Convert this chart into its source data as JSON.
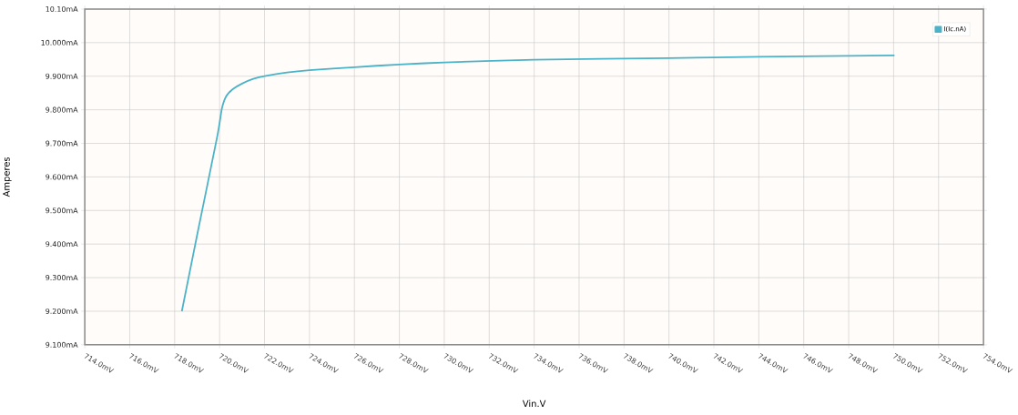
{
  "chart_data": {
    "type": "line",
    "xlabel": "Vin.V",
    "ylabel": "Amperes",
    "x": [
      718.32,
      719.0,
      719.9,
      720.1,
      720.3,
      720.6,
      721.0,
      721.5,
      722.0,
      723.0,
      724.0,
      726.0,
      728.0,
      730.0,
      734.0,
      740.0,
      744.0,
      750.04
    ],
    "series": [
      {
        "name": "I(Ic.nA)",
        "color": "#4bb3c8",
        "values": [
          9.2,
          9.427,
          9.722,
          9.803,
          9.841,
          9.862,
          9.878,
          9.892,
          9.9,
          9.911,
          9.918,
          9.927,
          9.935,
          9.941,
          9.949,
          9.954,
          9.958,
          9.962
        ]
      }
    ],
    "xlim": [
      714,
      754
    ],
    "ylim": [
      9.1,
      10.1
    ],
    "xticks": [
      {
        "value": 714,
        "label": "714.0mV"
      },
      {
        "value": 716,
        "label": "716.0mV"
      },
      {
        "value": 718,
        "label": "718.0mV"
      },
      {
        "value": 720,
        "label": "720.0mV"
      },
      {
        "value": 722,
        "label": "722.0mV"
      },
      {
        "value": 724,
        "label": "724.0mV"
      },
      {
        "value": 726,
        "label": "726.0mV"
      },
      {
        "value": 728,
        "label": "728.0mV"
      },
      {
        "value": 730,
        "label": "730.0mV"
      },
      {
        "value": 732,
        "label": "732.0mV"
      },
      {
        "value": 734,
        "label": "734.0mV"
      },
      {
        "value": 736,
        "label": "736.0mV"
      },
      {
        "value": 738,
        "label": "738.0mV"
      },
      {
        "value": 740,
        "label": "740.0mV"
      },
      {
        "value": 742,
        "label": "742.0mV"
      },
      {
        "value": 744,
        "label": "744.0mV"
      },
      {
        "value": 746,
        "label": "746.0mV"
      },
      {
        "value": 748,
        "label": "748.0mV"
      },
      {
        "value": 750,
        "label": "750.0mV"
      },
      {
        "value": 752,
        "label": "752.0mV"
      },
      {
        "value": 754,
        "label": "754.0mV"
      }
    ],
    "yticks": [
      {
        "value": 9.1,
        "label": "9.100mA"
      },
      {
        "value": 9.2,
        "label": "9.200mA"
      },
      {
        "value": 9.3,
        "label": "9.300mA"
      },
      {
        "value": 9.4,
        "label": "9.400mA"
      },
      {
        "value": 9.5,
        "label": "9.500mA"
      },
      {
        "value": 9.6,
        "label": "9.600mA"
      },
      {
        "value": 9.7,
        "label": "9.700mA"
      },
      {
        "value": 9.8,
        "label": "9.800mA"
      },
      {
        "value": 9.9,
        "label": "9.900mA"
      },
      {
        "value": 10.0,
        "label": "10.000mA"
      },
      {
        "value": 10.1,
        "label": "10.10mA"
      }
    ],
    "grid": true,
    "legend": "top right",
    "marker": "none",
    "line_style": "solid"
  }
}
